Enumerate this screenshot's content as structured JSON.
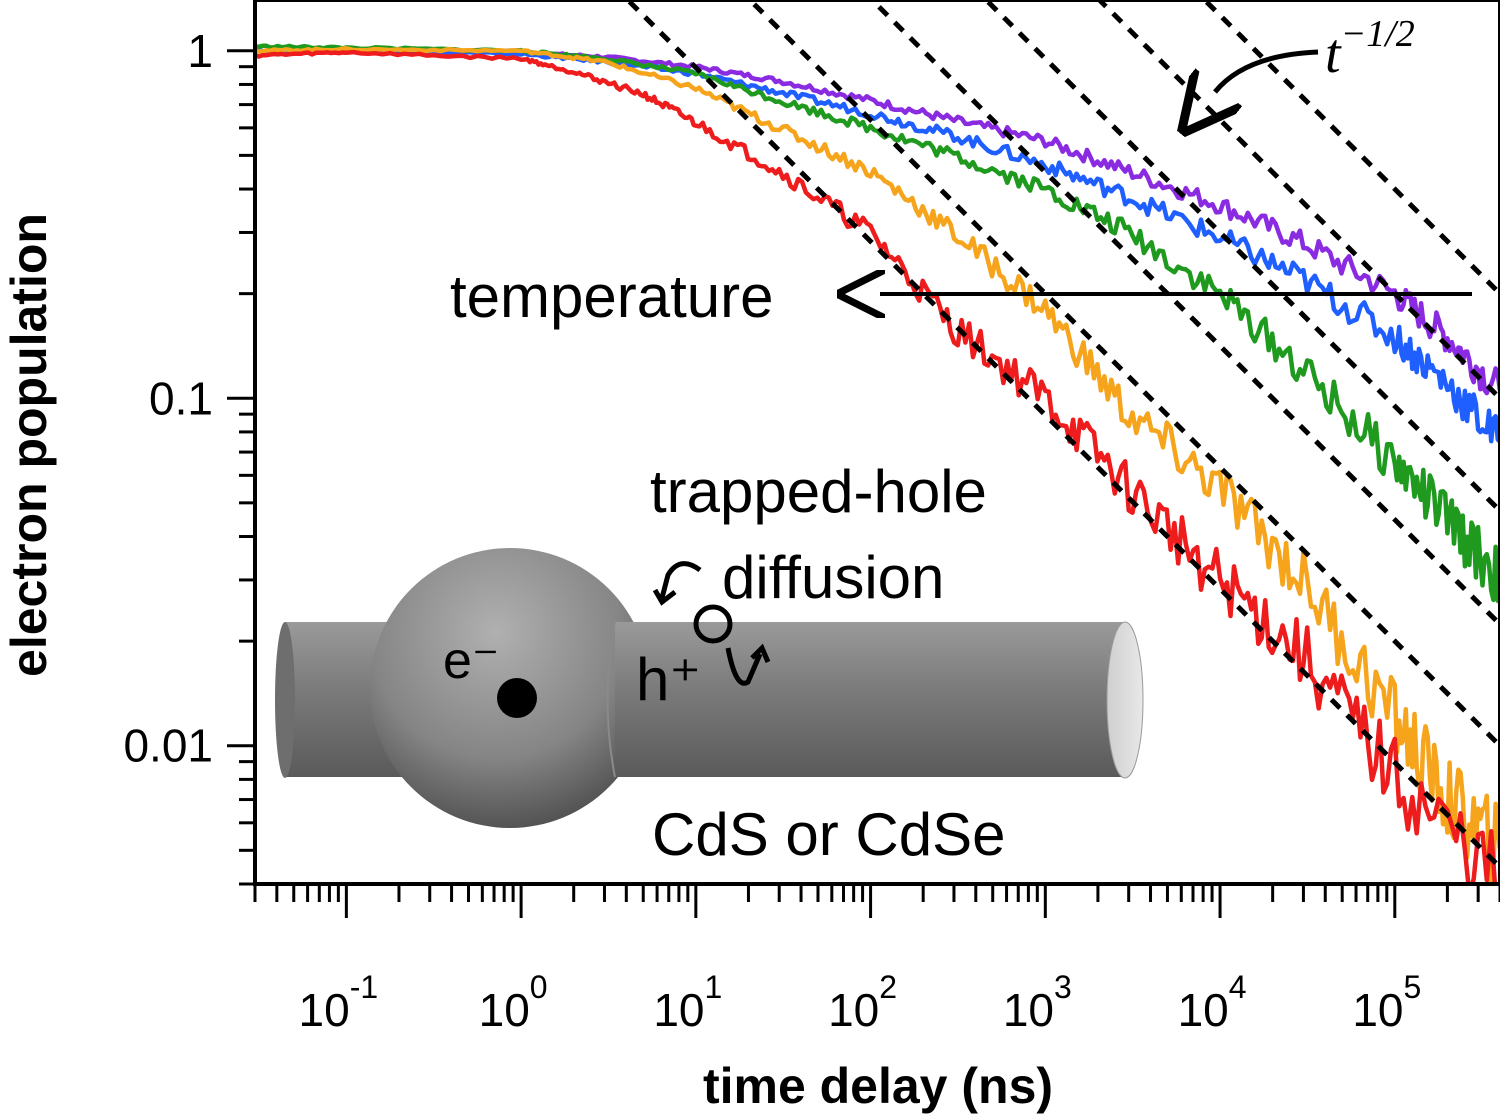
{
  "chart_data": {
    "type": "line",
    "title": "",
    "xlabel": "time delay (ns)",
    "ylabel": "electron population",
    "x_scale": "log",
    "y_scale": "log",
    "xlim": [
      0.03,
      400000
    ],
    "ylim": [
      0.004,
      1.4
    ],
    "x_ticks": [
      {
        "value": 0.1,
        "base": "10",
        "exp": "-1"
      },
      {
        "value": 1,
        "base": "10",
        "exp": "0"
      },
      {
        "value": 10,
        "base": "10",
        "exp": "1"
      },
      {
        "value": 100,
        "base": "10",
        "exp": "2"
      },
      {
        "value": 1000,
        "base": "10",
        "exp": "3"
      },
      {
        "value": 10000,
        "base": "10",
        "exp": "4"
      },
      {
        "value": 100000,
        "base": "10",
        "exp": "5"
      }
    ],
    "y_ticks": [
      {
        "value": 1,
        "label": "1"
      },
      {
        "value": 0.1,
        "label": "0.1"
      },
      {
        "value": 0.01,
        "label": "0.01"
      }
    ],
    "grid": false,
    "legend": "none",
    "series": [
      {
        "color": "#8a2be2",
        "x": [
          0.03,
          0.1,
          1,
          3,
          10,
          30,
          100,
          300,
          1000,
          3000,
          10000,
          30000,
          100000,
          200000,
          400000
        ],
        "y": [
          1.0,
          1.0,
          0.99,
          0.96,
          0.9,
          0.82,
          0.72,
          0.63,
          0.55,
          0.45,
          0.36,
          0.28,
          0.2,
          0.15,
          0.105
        ]
      },
      {
        "color": "#1f5fff",
        "x": [
          0.03,
          0.1,
          1,
          3,
          10,
          30,
          100,
          300,
          1000,
          3000,
          10000,
          30000,
          100000,
          200000,
          400000
        ],
        "y": [
          1.0,
          1.0,
          0.98,
          0.93,
          0.86,
          0.76,
          0.66,
          0.57,
          0.47,
          0.38,
          0.29,
          0.22,
          0.15,
          0.11,
          0.075
        ]
      },
      {
        "color": "#1f9a1f",
        "x": [
          0.03,
          0.1,
          1,
          3,
          10,
          30,
          100,
          300,
          1000,
          3000,
          10000,
          30000,
          100000,
          200000,
          400000
        ],
        "y": [
          1.03,
          1.02,
          1.0,
          0.95,
          0.86,
          0.72,
          0.6,
          0.5,
          0.4,
          0.3,
          0.2,
          0.12,
          0.065,
          0.045,
          0.03
        ]
      },
      {
        "color": "#f5a41c",
        "x": [
          0.03,
          0.1,
          1,
          3,
          10,
          30,
          100,
          300,
          1000,
          3000,
          10000,
          30000,
          100000,
          200000,
          400000
        ],
        "y": [
          1.0,
          1.01,
          1.0,
          0.93,
          0.78,
          0.6,
          0.45,
          0.3,
          0.18,
          0.09,
          0.055,
          0.03,
          0.012,
          0.007,
          0.005
        ]
      },
      {
        "color": "#ee1c1c",
        "x": [
          0.03,
          0.1,
          1,
          2,
          5,
          10,
          30,
          100,
          300,
          1000,
          3000,
          10000,
          30000,
          100000,
          400000
        ],
        "y": [
          0.97,
          0.99,
          0.95,
          0.87,
          0.75,
          0.62,
          0.45,
          0.3,
          0.16,
          0.1,
          0.055,
          0.03,
          0.018,
          0.008,
          0.004
        ]
      }
    ],
    "guide_lines": {
      "style": "dashed",
      "slope": -0.5,
      "x_at_y1": [
        8,
        40,
        200,
        900,
        4000,
        16000
      ]
    },
    "annotations": {
      "power_law_base": "t",
      "power_law_exp": "−1/2",
      "temperature": "temperature",
      "trapped_hole": "trapped-hole",
      "diffusion": "diffusion",
      "electron": "e⁻",
      "hole": "h⁺",
      "material": "CdS or CdSe"
    }
  }
}
